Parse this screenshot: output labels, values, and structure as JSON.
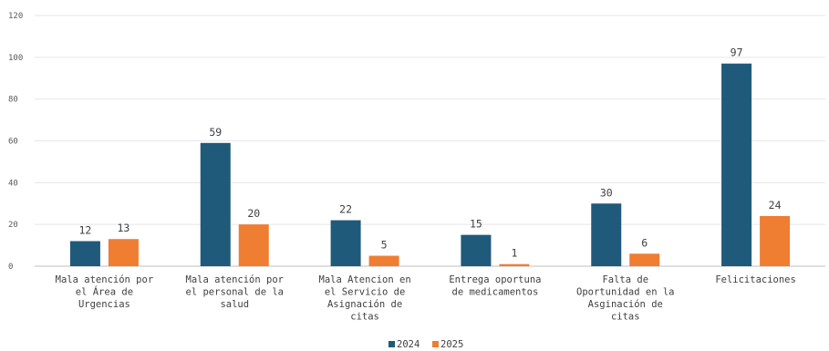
{
  "chart_data": {
    "type": "bar",
    "categories": [
      [
        "Mala atención por",
        "el Área de",
        "Urgencias"
      ],
      [
        "Mala atención por",
        "el personal de la",
        "salud"
      ],
      [
        "Mala Atencion en",
        "el Servicio de",
        "Asignación de",
        "citas"
      ],
      [
        "Entrega oportuna",
        "de medicamentos"
      ],
      [
        "Falta de",
        "Oportunidad en la",
        "Asginación de",
        "citas"
      ],
      [
        "Felicitaciones"
      ]
    ],
    "series": [
      {
        "name": "2024",
        "color": "#1f5a7a",
        "values": [
          12,
          59,
          22,
          15,
          30,
          97
        ]
      },
      {
        "name": "2025",
        "color": "#ef7d32",
        "values": [
          13,
          20,
          5,
          1,
          6,
          24
        ]
      }
    ],
    "ylim": [
      0,
      120
    ],
    "yticks": [
      "0",
      "20",
      "40",
      "60",
      "80",
      "100",
      "120"
    ],
    "grid": true,
    "legend_position": "bottom"
  }
}
